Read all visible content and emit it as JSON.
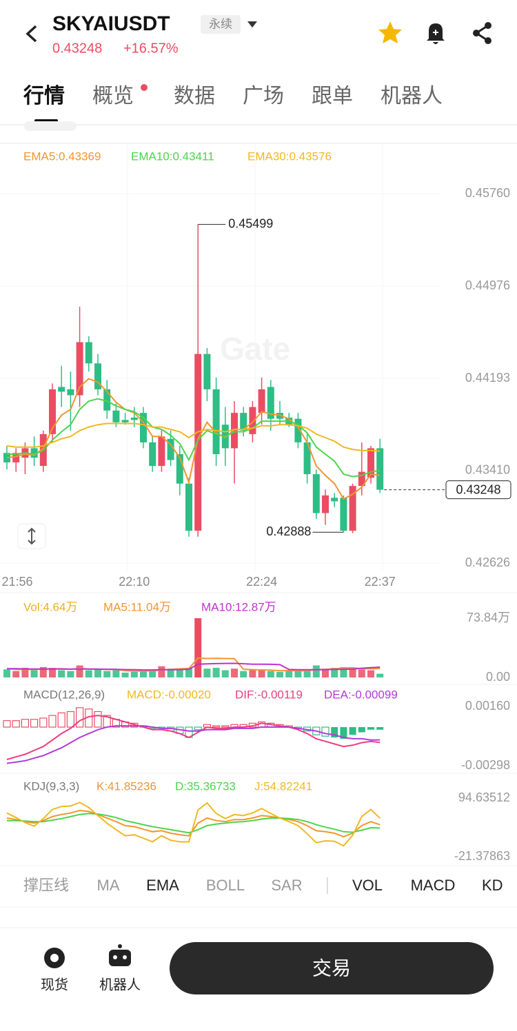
{
  "header": {
    "title": "SKYAIUSDT",
    "badge": "永续",
    "price": "0.43248",
    "change": "+16.57%"
  },
  "tabs": [
    "行情",
    "概览",
    "数据",
    "广场",
    "跟单",
    "机器人"
  ],
  "watermark": "Gate",
  "chart_data": [
    {
      "type": "candlestick",
      "up_color": "#ea4d62",
      "down_color": "#2dbd85",
      "grid": true,
      "categories": [
        "21:56",
        null,
        null,
        null,
        null,
        null,
        null,
        null,
        null,
        null,
        null,
        null,
        null,
        null,
        "22:10",
        null,
        null,
        null,
        null,
        null,
        null,
        null,
        null,
        null,
        null,
        null,
        null,
        null,
        "22:24",
        null,
        null,
        null,
        null,
        null,
        null,
        null,
        null,
        null,
        null,
        null,
        null,
        "22:37"
      ],
      "open": [
        0.4356,
        0.4348,
        0.4352,
        0.436,
        0.4345,
        0.4372,
        0.4412,
        0.441,
        0.4405,
        0.445,
        0.4432,
        0.441,
        0.4392,
        0.4384,
        0.4386,
        0.439,
        0.4365,
        0.4345,
        0.4368,
        0.4355,
        0.433,
        0.429,
        0.444,
        0.441,
        0.438,
        0.436,
        0.439,
        0.4372,
        0.439,
        0.4412,
        0.439,
        0.4386,
        0.4385,
        0.4365,
        0.4338,
        0.4305,
        0.4318,
        0.4318,
        0.429,
        0.4328,
        0.4335,
        0.436
      ],
      "high": [
        0.4362,
        0.436,
        0.4365,
        0.437,
        0.4375,
        0.4415,
        0.443,
        0.4425,
        0.448,
        0.4455,
        0.444,
        0.4418,
        0.4398,
        0.439,
        0.4395,
        0.4395,
        0.437,
        0.4375,
        0.4375,
        0.4362,
        0.4335,
        0.45499,
        0.4445,
        0.442,
        0.4395,
        0.44,
        0.4395,
        0.44,
        0.442,
        0.4418,
        0.44,
        0.439,
        0.439,
        0.4372,
        0.4342,
        0.4325,
        0.4322,
        0.432,
        0.433,
        0.4365,
        0.4362,
        0.4368
      ],
      "low": [
        0.4342,
        0.434,
        0.4338,
        0.4345,
        0.434,
        0.4365,
        0.4395,
        0.4375,
        0.4395,
        0.4425,
        0.4405,
        0.4385,
        0.4378,
        0.438,
        0.4378,
        0.436,
        0.434,
        0.434,
        0.4345,
        0.432,
        0.4285,
        0.4285,
        0.44,
        0.4345,
        0.4345,
        0.433,
        0.437,
        0.4365,
        0.438,
        0.4375,
        0.438,
        0.4378,
        0.436,
        0.433,
        0.43,
        0.4295,
        0.431,
        0.42888,
        0.4288,
        0.432,
        0.433,
        0.4322
      ],
      "close": [
        0.4348,
        0.4356,
        0.436,
        0.4352,
        0.4372,
        0.441,
        0.4408,
        0.4405,
        0.445,
        0.4432,
        0.441,
        0.4392,
        0.4382,
        0.4382,
        0.4384,
        0.4365,
        0.4345,
        0.437,
        0.435,
        0.433,
        0.429,
        0.444,
        0.441,
        0.4355,
        0.436,
        0.439,
        0.4375,
        0.4395,
        0.441,
        0.4385,
        0.4385,
        0.438,
        0.4365,
        0.4338,
        0.4305,
        0.432,
        0.4315,
        0.429,
        0.4328,
        0.434,
        0.436,
        0.43248
      ],
      "ylim": [
        0.42626,
        0.4576
      ],
      "yticks": [
        {
          "value": 0.4576,
          "label": "0.45760"
        },
        0.44976,
        0.44193,
        {
          "value": 0.4341,
          "label": "0.43410"
        },
        0.42626
      ],
      "series": [
        {
          "name": "EMA5:0.43369",
          "color": "#f0962e",
          "values": [
            0.4352,
            0.4353,
            0.4355,
            0.4354,
            0.436,
            0.4377,
            0.4388,
            0.4393,
            0.4412,
            0.4419,
            0.4416,
            0.4408,
            0.4399,
            0.4393,
            0.439,
            0.4382,
            0.437,
            0.437,
            0.4363,
            0.4352,
            0.4331,
            0.4368,
            0.4382,
            0.4373,
            0.4369,
            0.4376,
            0.4376,
            0.4382,
            0.4391,
            0.4389,
            0.4388,
            0.4385,
            0.4378,
            0.4365,
            0.4345,
            0.4337,
            0.433,
            0.4317,
            0.4321,
            0.4327,
            0.4338,
            0.43369
          ]
        },
        {
          "name": "EMA10:0.43411",
          "color": "#4cd44c",
          "values": [
            0.4355,
            0.4355,
            0.4356,
            0.4355,
            0.4358,
            0.4367,
            0.4374,
            0.438,
            0.4393,
            0.44,
            0.4402,
            0.44,
            0.4396,
            0.4393,
            0.4391,
            0.4386,
            0.4378,
            0.4376,
            0.4371,
            0.4364,
            0.435,
            0.4367,
            0.4375,
            0.4372,
            0.437,
            0.4374,
            0.4374,
            0.4377,
            0.4383,
            0.4383,
            0.4383,
            0.4383,
            0.438,
            0.4373,
            0.4361,
            0.4355,
            0.4349,
            0.4338,
            0.4336,
            0.4337,
            0.434,
            0.43411
          ]
        },
        {
          "name": "EMA30:0.43576",
          "color": "#f0b820",
          "values": [
            0.4362,
            0.4361,
            0.4361,
            0.4361,
            0.4362,
            0.4365,
            0.4368,
            0.437,
            0.4375,
            0.4378,
            0.438,
            0.4381,
            0.4381,
            0.4381,
            0.4381,
            0.438,
            0.4378,
            0.4378,
            0.4376,
            0.4374,
            0.4369,
            0.4374,
            0.4376,
            0.4375,
            0.4374,
            0.4376,
            0.4376,
            0.4377,
            0.4379,
            0.4379,
            0.438,
            0.438,
            0.4379,
            0.4377,
            0.4372,
            0.4369,
            0.4366,
            0.4361,
            0.4359,
            0.4358,
            0.4358,
            0.43576
          ]
        }
      ]
    },
    {
      "type": "bar",
      "ylim": [
        0,
        73.84
      ],
      "yticks": [
        {
          "value": 73.84,
          "label": "73.84万"
        },
        {
          "value": 0,
          "label": "0.00"
        }
      ],
      "series": [
        {
          "name": "Vol:4.64万",
          "color": "#f0b020",
          "mark": "bar",
          "values": [
            10,
            8,
            12,
            9,
            13,
            12,
            9,
            8,
            15,
            9,
            10,
            8,
            9,
            6,
            7,
            10,
            9,
            14,
            11,
            10,
            12,
            73.84,
            11,
            12,
            9,
            11,
            8,
            9,
            10,
            8,
            7,
            9,
            8,
            10,
            15,
            9,
            12,
            13,
            11,
            10,
            9,
            4.64
          ]
        },
        {
          "name": "MA5:11.04万",
          "color": "#f0962e",
          "mark": "line",
          "values": [
            11,
            10,
            10,
            10,
            10.5,
            10.8,
            11,
            10.2,
            11.4,
            10.6,
            10.2,
            10,
            10.2,
            8.4,
            8,
            8,
            8.2,
            9.2,
            10.2,
            10.8,
            11.2,
            24.2,
            23.6,
            23.8,
            23.6,
            23.4,
            10.2,
            9.8,
            9.4,
            9.2,
            8.4,
            8.6,
            8.4,
            8.4,
            9.8,
            10.2,
            10.8,
            11.8,
            12,
            11,
            11,
            11.04
          ]
        },
        {
          "name": "MA10:12.87万",
          "color": "#c030d0",
          "mark": "line",
          "values": [
            11,
            11,
            10.5,
            10.5,
            10.4,
            10.5,
            10.5,
            10.4,
            10.6,
            10.5,
            10.4,
            10.2,
            10.1,
            9.8,
            9.6,
            9.4,
            9.4,
            9.6,
            9.6,
            9.8,
            10.2,
            16.6,
            17,
            17.3,
            17.5,
            17.6,
            17.1,
            16.6,
            16.5,
            16.4,
            16,
            10,
            9.6,
            9.6,
            9.6,
            9.8,
            10,
            10.2,
            10.5,
            11.5,
            12.2,
            12.87
          ]
        }
      ]
    },
    {
      "type": "macd",
      "title": "MACD(12,26,9)",
      "ylim": [
        -0.00298,
        0.0016
      ],
      "yticks": [
        {
          "value": 0.0016,
          "label": "0.00160"
        },
        {
          "value": -0.00298,
          "label": "-0.00298"
        }
      ],
      "series": [
        {
          "name": "MACD:-0.00020",
          "color": "#f0b820",
          "mark": "bar",
          "values": [
            0.0005,
            0.0005,
            0.0006,
            0.0006,
            0.0007,
            0.0009,
            0.0011,
            0.0012,
            0.0015,
            0.0014,
            0.0012,
            0.0009,
            0.0006,
            0.0004,
            0.0003,
            0.0001,
            -0.0001,
            -0.0002,
            -0.0003,
            -0.0005,
            -0.0008,
            -0.0002,
            0.0002,
            0.0001,
            0.0001,
            0.0002,
            0.0002,
            0.0003,
            0.0004,
            0.0003,
            0.0002,
            0.0001,
            -0.0001,
            -0.0003,
            -0.0006,
            -0.0007,
            -0.0008,
            -0.0009,
            -0.0006,
            -0.0004,
            -0.0002,
            -0.0002
          ]
        },
        {
          "name": "DIF:-0.00119",
          "color": "#ee3d7e",
          "mark": "line",
          "values": [
            -0.0025,
            -0.0023,
            -0.0021,
            -0.0018,
            -0.0015,
            -0.001,
            -0.0005,
            -0.0001,
            0.0005,
            0.0008,
            0.0009,
            0.0008,
            0.0006,
            0.0004,
            0.0002,
            0,
            -0.0002,
            -0.0002,
            -0.0003,
            -0.0005,
            -0.0008,
            -0.0004,
            0,
            -0.0001,
            -0.0001,
            0,
            0,
            0.0001,
            0.0003,
            0.0002,
            0.0001,
            0,
            -0.0002,
            -0.0005,
            -0.0009,
            -0.0011,
            -0.0013,
            -0.0015,
            -0.0014,
            -0.0012,
            -0.0011,
            -0.00119
          ]
        },
        {
          "name": "DEA:-0.00099",
          "color": "#b13bd6",
          "mark": "line",
          "values": [
            -0.0028,
            -0.0027,
            -0.0026,
            -0.0024,
            -0.0022,
            -0.0019,
            -0.0016,
            -0.0012,
            -0.0008,
            -0.0005,
            -0.0002,
            0,
            0.0001,
            0.0001,
            0.0001,
            0.0001,
            0,
            -0.0001,
            -0.0001,
            -0.0002,
            -0.0003,
            -0.0003,
            -0.0002,
            -0.0002,
            -0.0002,
            -0.0001,
            -0.0001,
            -0.0001,
            0,
            0,
            0,
            0,
            -0.0001,
            -0.0002,
            -0.0003,
            -0.0005,
            -0.0006,
            -0.0008,
            -0.0009,
            -0.0009,
            -0.001,
            -0.00099
          ]
        }
      ]
    },
    {
      "type": "line",
      "title": "KDJ(9,3,3)",
      "ylim": [
        -21.37863,
        94.63512
      ],
      "yticks": [
        94.63512,
        -21.37863
      ],
      "series": [
        {
          "name": "K:41.85236",
          "color": "#f0962e",
          "mark": "line",
          "values": [
            55,
            52,
            48,
            45,
            50,
            58,
            62,
            65,
            70,
            68,
            62,
            55,
            48,
            40,
            38,
            33,
            28,
            30,
            25,
            22,
            20,
            45,
            55,
            50,
            48,
            52,
            52,
            55,
            60,
            58,
            55,
            52,
            48,
            40,
            30,
            28,
            25,
            18,
            25,
            40,
            48,
            41.85236
          ]
        },
        {
          "name": "D:35.36733",
          "color": "#4cd44c",
          "mark": "line",
          "values": [
            50,
            50,
            49,
            48,
            48,
            51,
            54,
            58,
            62,
            64,
            63,
            60,
            56,
            50,
            46,
            42,
            38,
            35,
            32,
            29,
            26,
            32,
            40,
            43,
            45,
            47,
            48,
            50,
            53,
            55,
            55,
            54,
            52,
            48,
            42,
            37,
            33,
            28,
            27,
            31,
            36,
            35.36733
          ]
        },
        {
          "name": "J:54.82241",
          "color": "#f0b820",
          "mark": "line",
          "values": [
            65,
            56,
            46,
            39,
            54,
            72,
            78,
            79,
            86,
            76,
            60,
            45,
            32,
            20,
            22,
            15,
            8,
            20,
            11,
            8,
            8,
            71,
            85,
            64,
            54,
            62,
            60,
            65,
            74,
            64,
            55,
            48,
            40,
            24,
            6,
            10,
            9,
            0,
            21,
            58,
            72,
            54.82241
          ]
        }
      ]
    }
  ],
  "indicator_tabs": [
    "撑压线",
    "MA",
    "EMA",
    "BOLL",
    "SAR",
    "VOL",
    "MACD",
    "KD"
  ],
  "footer": {
    "spot": "现货",
    "bot": "机器人",
    "trade": "交易"
  }
}
